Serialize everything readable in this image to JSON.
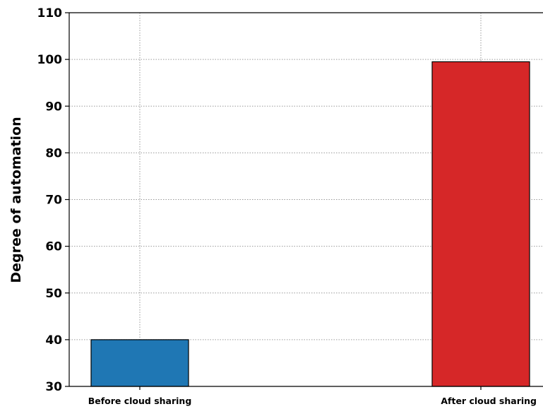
{
  "chart_data": {
    "type": "bar",
    "categories": [
      "Before cloud sharing",
      "After cloud sharing"
    ],
    "values": [
      40,
      99.5
    ],
    "colors": [
      "#1f77b4",
      "#d62728"
    ],
    "ylabel": "Degree of automation",
    "ylim": [
      30,
      110
    ],
    "yticks": [
      "30",
      "40",
      "50",
      "60",
      "70",
      "80",
      "90",
      "100",
      "110"
    ],
    "grid": true
  }
}
